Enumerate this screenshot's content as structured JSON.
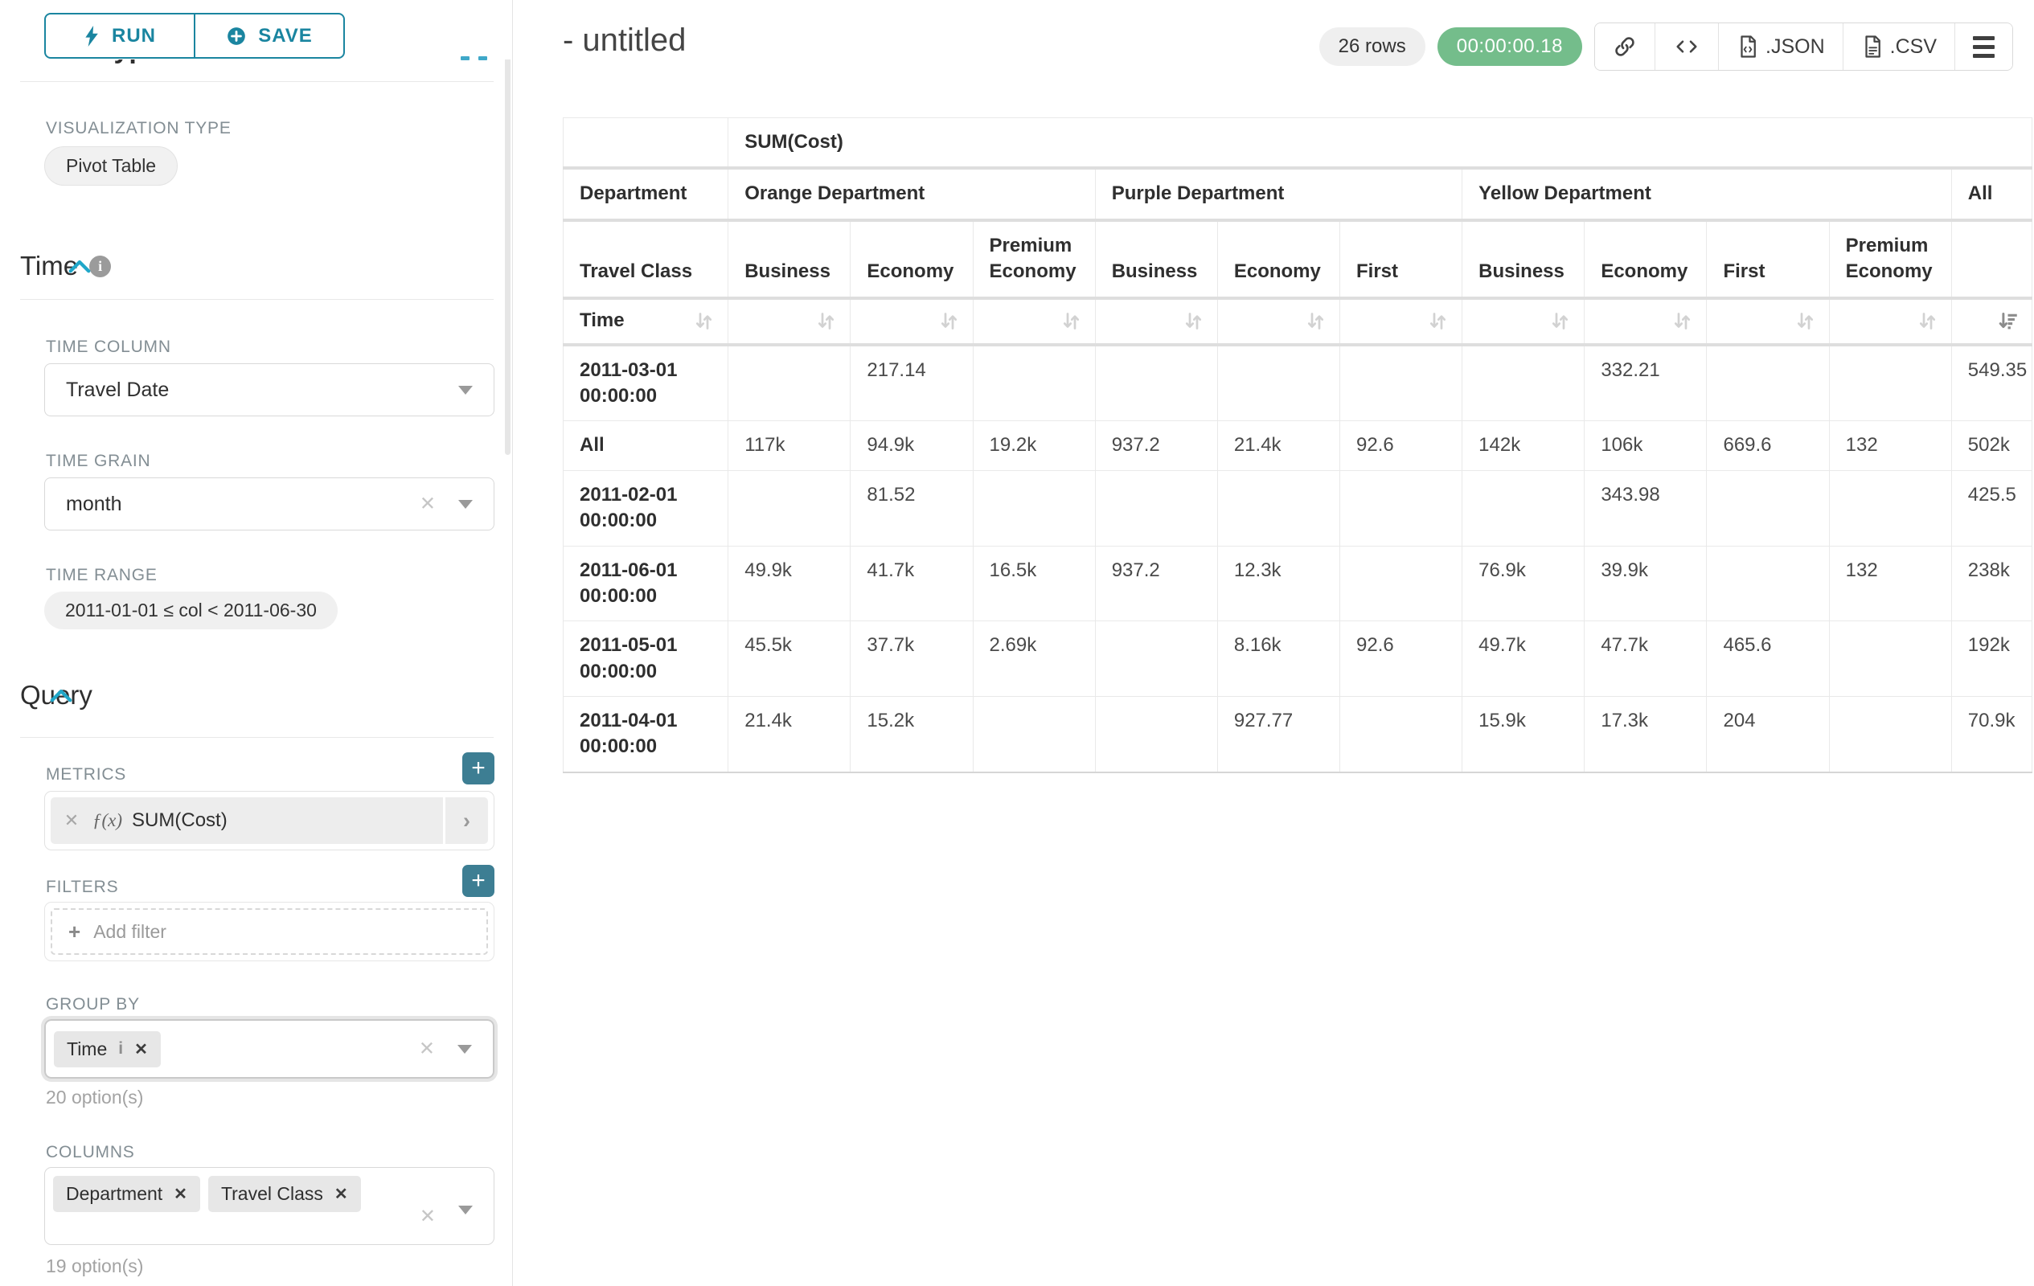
{
  "colors": {
    "accent": "#1a85a0",
    "accent_bright": "#20a7c9",
    "success_badge": "#74bd8b",
    "add_button": "#3d7e93"
  },
  "sidebar": {
    "run_button": "RUN",
    "save_button": "SAVE",
    "chart_type_heading": "Chart Type",
    "visualization_type": {
      "label": "VISUALIZATION TYPE",
      "value": "Pivot Table"
    },
    "time_section": {
      "title": "Time",
      "time_column": {
        "label": "TIME COLUMN",
        "value": "Travel Date"
      },
      "time_grain": {
        "label": "TIME GRAIN",
        "value": "month"
      },
      "time_range": {
        "label": "TIME RANGE",
        "value": "2011-01-01 ≤ col < 2011-06-30"
      }
    },
    "query_section": {
      "title": "Query",
      "metrics": {
        "label": "METRICS",
        "fx": "ƒ(x)",
        "value": "SUM(Cost)"
      },
      "filters": {
        "label": "FILTERS",
        "placeholder": "Add filter"
      },
      "group_by": {
        "label": "GROUP BY",
        "tags": [
          "Time"
        ],
        "hint": "20 option(s)"
      },
      "columns": {
        "label": "COLUMNS",
        "tags": [
          "Department",
          "Travel Class"
        ],
        "hint": "19 option(s)"
      }
    }
  },
  "header": {
    "title": "- untitled",
    "rows_badge": "26 rows",
    "timer": "00:00:00.18",
    "json_label": ".JSON",
    "csv_label": ".CSV"
  },
  "pivot": {
    "metric_header": "SUM(Cost)",
    "corner": {
      "row2": "Department",
      "row3": "Travel Class",
      "row4": "Time"
    },
    "groups": [
      {
        "label": "Orange Department",
        "classes": [
          "Business",
          "Economy",
          "Premium Economy"
        ]
      },
      {
        "label": "Purple Department",
        "classes": [
          "Business",
          "Economy",
          "First"
        ]
      },
      {
        "label": "Yellow Department",
        "classes": [
          "Business",
          "Economy",
          "First",
          "Premium Economy"
        ]
      }
    ],
    "all_label": "All",
    "rows": [
      {
        "label": "2011-03-01 00:00:00",
        "values": [
          "",
          "217.14",
          "",
          "",
          "",
          "",
          "",
          "332.21",
          "",
          "",
          "549.35"
        ]
      },
      {
        "label": "All",
        "values": [
          "117k",
          "94.9k",
          "19.2k",
          "937.2",
          "21.4k",
          "92.6",
          "142k",
          "106k",
          "669.6",
          "132",
          "502k"
        ]
      },
      {
        "label": "2011-02-01 00:00:00",
        "values": [
          "",
          "81.52",
          "",
          "",
          "",
          "",
          "",
          "343.98",
          "",
          "",
          "425.5"
        ]
      },
      {
        "label": "2011-06-01 00:00:00",
        "values": [
          "49.9k",
          "41.7k",
          "16.5k",
          "937.2",
          "12.3k",
          "",
          "76.9k",
          "39.9k",
          "",
          "132",
          "238k"
        ]
      },
      {
        "label": "2011-05-01 00:00:00",
        "values": [
          "45.5k",
          "37.7k",
          "2.69k",
          "",
          "8.16k",
          "92.6",
          "49.7k",
          "47.7k",
          "465.6",
          "",
          "192k"
        ]
      },
      {
        "label": "2011-04-01 00:00:00",
        "values": [
          "21.4k",
          "15.2k",
          "",
          "",
          "927.77",
          "",
          "15.9k",
          "17.3k",
          "204",
          "",
          "70.9k"
        ]
      }
    ]
  }
}
